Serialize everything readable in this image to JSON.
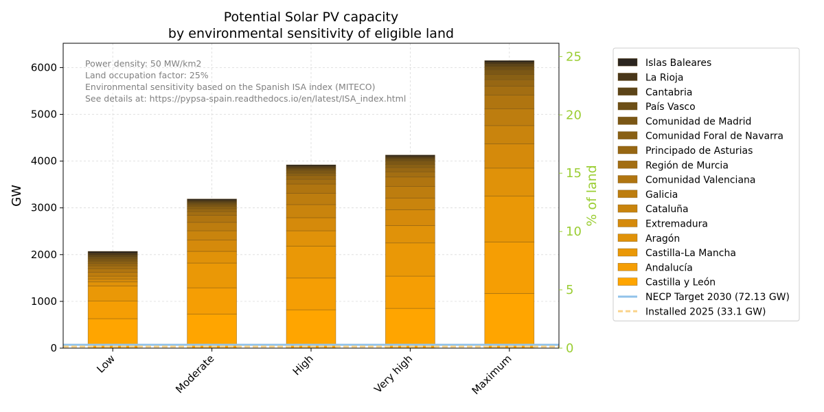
{
  "chart_data": {
    "type": "bar",
    "stacked": true,
    "title": "Potential Solar PV capacity\nby environmental sensitivity of eligible land",
    "xlabel": "",
    "ylabel": "GW",
    "y2label": "% of land",
    "ylim": [
      0,
      6520
    ],
    "y2lim": [
      0,
      26.14
    ],
    "yticks": [
      "0",
      "1000",
      "2000",
      "3000",
      "4000",
      "5000",
      "6000"
    ],
    "y2ticks": [
      "0",
      "5",
      "10",
      "15",
      "20",
      "25"
    ],
    "grid": true,
    "legend_position": "right, outside plot",
    "categories": [
      "Low",
      "Moderate",
      "High",
      "Very high",
      "Maximum"
    ],
    "series": [
      {
        "name": "Castilla y León",
        "color": "#ffa500",
        "values": [
          630,
          730,
          820,
          850,
          1170
        ]
      },
      {
        "name": "Andalucía",
        "color": "#f59e04",
        "values": [
          380,
          560,
          680,
          690,
          1100
        ]
      },
      {
        "name": "Castilla-La Mancha",
        "color": "#ea9806",
        "values": [
          320,
          530,
          680,
          710,
          980
        ]
      },
      {
        "name": "Aragón",
        "color": "#e09209",
        "values": [
          90,
          250,
          330,
          370,
          600
        ]
      },
      {
        "name": "Extremadura",
        "color": "#d58a0b",
        "values": [
          60,
          240,
          280,
          340,
          520
        ]
      },
      {
        "name": "Cataluña",
        "color": "#c9840d",
        "values": [
          60,
          200,
          280,
          250,
          390
        ]
      },
      {
        "name": "Galicia",
        "color": "#bd7d0f",
        "values": [
          80,
          180,
          240,
          250,
          360
        ]
      },
      {
        "name": "Comunidad Valenciana",
        "color": "#b07510",
        "values": [
          80,
          150,
          200,
          200,
          290
        ]
      },
      {
        "name": "Región de Murcia",
        "color": "#a36e12",
        "values": [
          60,
          80,
          100,
          110,
          190
        ]
      },
      {
        "name": "Principado de Asturias",
        "color": "#976713",
        "values": [
          50,
          60,
          80,
          90,
          140
        ]
      },
      {
        "name": "Comunidad Foral de Navarra",
        "color": "#896014",
        "values": [
          50,
          50,
          50,
          70,
          110
        ]
      },
      {
        "name": "Comunidad de Madrid",
        "color": "#7b5715",
        "values": [
          50,
          40,
          60,
          70,
          100
        ]
      },
      {
        "name": "País Vasco",
        "color": "#6d4f16",
        "values": [
          40,
          30,
          30,
          40,
          70
        ]
      },
      {
        "name": "Cantabria",
        "color": "#5c4418",
        "values": [
          40,
          30,
          30,
          30,
          50
        ]
      },
      {
        "name": "La Rioja",
        "color": "#483619",
        "values": [
          40,
          30,
          30,
          30,
          40
        ]
      },
      {
        "name": "Islas Baleares",
        "color": "#2b251f",
        "values": [
          40,
          30,
          30,
          30,
          40
        ]
      }
    ],
    "lines": [
      {
        "name": "NECP Target 2030 (72.13 GW)",
        "value": 72.13,
        "color": "#90c2ea",
        "style": "solid"
      },
      {
        "name": "Installed 2025 (33.1 GW)",
        "value": 33.1,
        "color": "#fad38a",
        "style": "dashed"
      }
    ],
    "annotations": [
      "Power density: 50 MW/km2",
      "Land occupation factor: 25%",
      "Environmental sensitivity based on the Spanish ISA index (MITECO)",
      "See details at: https://pypsa-spain.readthedocs.io/en/latest/ISA_index.html"
    ],
    "colors": {
      "right_axis": "#9acd32",
      "text_annotation": "#808080",
      "grid": "#d9d9d9"
    }
  }
}
